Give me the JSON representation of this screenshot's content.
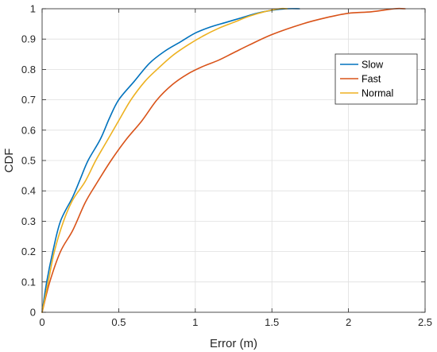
{
  "chart_data": {
    "type": "line",
    "title": "",
    "xlabel": "Error (m)",
    "ylabel": "CDF",
    "xlim": [
      0,
      2.5
    ],
    "ylim": [
      0,
      1
    ],
    "xticks": [
      0,
      0.5,
      1,
      1.5,
      2,
      2.5
    ],
    "xtick_labels": [
      "0",
      "0.5",
      "1",
      "1.5",
      "2",
      "2.5"
    ],
    "yticks": [
      0,
      0.1,
      0.2,
      0.3,
      0.4,
      0.5,
      0.6,
      0.7,
      0.8,
      0.9,
      1
    ],
    "ytick_labels": [
      "0",
      "0.1",
      "0.2",
      "0.3",
      "0.4",
      "0.5",
      "0.6",
      "0.7",
      "0.8",
      "0.9",
      "1"
    ],
    "grid": true,
    "legend_position": "top-right",
    "series": [
      {
        "name": "Slow",
        "color": "#0072BD",
        "points": [
          [
            0,
            0
          ],
          [
            0.03,
            0.1
          ],
          [
            0.07,
            0.2
          ],
          [
            0.12,
            0.3
          ],
          [
            0.2,
            0.38
          ],
          [
            0.25,
            0.44
          ],
          [
            0.3,
            0.5
          ],
          [
            0.38,
            0.57
          ],
          [
            0.44,
            0.64
          ],
          [
            0.5,
            0.7
          ],
          [
            0.6,
            0.76
          ],
          [
            0.7,
            0.82
          ],
          [
            0.8,
            0.86
          ],
          [
            0.9,
            0.89
          ],
          [
            1.0,
            0.92
          ],
          [
            1.1,
            0.94
          ],
          [
            1.2,
            0.955
          ],
          [
            1.3,
            0.97
          ],
          [
            1.4,
            0.985
          ],
          [
            1.5,
            0.995
          ],
          [
            1.6,
            1.0
          ],
          [
            1.68,
            1.0
          ]
        ]
      },
      {
        "name": "Fast",
        "color": "#D95319",
        "points": [
          [
            0,
            0
          ],
          [
            0.05,
            0.1
          ],
          [
            0.12,
            0.2
          ],
          [
            0.2,
            0.27
          ],
          [
            0.28,
            0.36
          ],
          [
            0.35,
            0.42
          ],
          [
            0.45,
            0.5
          ],
          [
            0.55,
            0.57
          ],
          [
            0.65,
            0.63
          ],
          [
            0.75,
            0.7
          ],
          [
            0.85,
            0.75
          ],
          [
            0.95,
            0.785
          ],
          [
            1.05,
            0.81
          ],
          [
            1.15,
            0.83
          ],
          [
            1.25,
            0.855
          ],
          [
            1.35,
            0.88
          ],
          [
            1.5,
            0.915
          ],
          [
            1.7,
            0.95
          ],
          [
            1.85,
            0.97
          ],
          [
            2.0,
            0.985
          ],
          [
            2.15,
            0.99
          ],
          [
            2.3,
            1.0
          ],
          [
            2.37,
            1.0
          ]
        ]
      },
      {
        "name": "Normal",
        "color": "#EDB120",
        "points": [
          [
            0,
            0
          ],
          [
            0.04,
            0.1
          ],
          [
            0.08,
            0.2
          ],
          [
            0.14,
            0.3
          ],
          [
            0.2,
            0.37
          ],
          [
            0.28,
            0.43
          ],
          [
            0.35,
            0.5
          ],
          [
            0.43,
            0.57
          ],
          [
            0.51,
            0.64
          ],
          [
            0.58,
            0.7
          ],
          [
            0.67,
            0.76
          ],
          [
            0.75,
            0.8
          ],
          [
            0.85,
            0.845
          ],
          [
            0.95,
            0.88
          ],
          [
            1.05,
            0.91
          ],
          [
            1.15,
            0.935
          ],
          [
            1.25,
            0.955
          ],
          [
            1.35,
            0.975
          ],
          [
            1.45,
            0.99
          ],
          [
            1.55,
            1.0
          ],
          [
            1.6,
            1.0
          ]
        ]
      }
    ]
  }
}
